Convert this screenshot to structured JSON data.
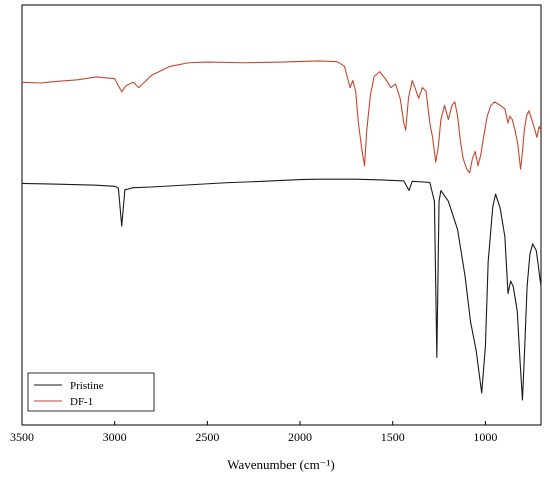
{
  "chart_data": {
    "type": "line",
    "xlabel": "Wavenumber (cm⁻¹)",
    "ylabel": "",
    "xlim": [
      3500,
      700
    ],
    "x_reversed": true,
    "y_ticks_shown": false,
    "grid": false,
    "legend_position": "bottom-left",
    "x_ticks": [
      3500,
      3000,
      2500,
      2000,
      1500,
      1000
    ],
    "series": [
      {
        "name": "Pristine",
        "color": "#1a1a1a",
        "points": [
          [
            3500,
            0.61
          ],
          [
            3300,
            0.608
          ],
          [
            3100,
            0.605
          ],
          [
            3000,
            0.602
          ],
          [
            2980,
            0.597
          ],
          [
            2962,
            0.49
          ],
          [
            2945,
            0.592
          ],
          [
            2900,
            0.598
          ],
          [
            2800,
            0.6
          ],
          [
            2600,
            0.606
          ],
          [
            2400,
            0.612
          ],
          [
            2200,
            0.616
          ],
          [
            2000,
            0.621
          ],
          [
            1900,
            0.622
          ],
          [
            1700,
            0.622
          ],
          [
            1560,
            0.62
          ],
          [
            1440,
            0.617
          ],
          [
            1412,
            0.59
          ],
          [
            1395,
            0.616
          ],
          [
            1300,
            0.613
          ],
          [
            1275,
            0.56
          ],
          [
            1262,
            0.12
          ],
          [
            1250,
            0.56
          ],
          [
            1240,
            0.59
          ],
          [
            1200,
            0.56
          ],
          [
            1150,
            0.48
          ],
          [
            1110,
            0.35
          ],
          [
            1080,
            0.22
          ],
          [
            1050,
            0.14
          ],
          [
            1020,
            0.02
          ],
          [
            1000,
            0.15
          ],
          [
            985,
            0.39
          ],
          [
            960,
            0.545
          ],
          [
            945,
            0.58
          ],
          [
            920,
            0.54
          ],
          [
            895,
            0.46
          ],
          [
            878,
            0.3
          ],
          [
            864,
            0.335
          ],
          [
            850,
            0.32
          ],
          [
            828,
            0.25
          ],
          [
            812,
            0.1
          ],
          [
            800,
            0.0
          ],
          [
            790,
            0.12
          ],
          [
            775,
            0.32
          ],
          [
            760,
            0.41
          ],
          [
            745,
            0.44
          ],
          [
            725,
            0.42
          ],
          [
            710,
            0.36
          ],
          [
            700,
            0.32
          ]
        ]
      },
      {
        "name": "DF-1",
        "color": "#c5472d",
        "points": [
          [
            3500,
            0.895
          ],
          [
            3400,
            0.893
          ],
          [
            3300,
            0.898
          ],
          [
            3200,
            0.902
          ],
          [
            3100,
            0.91
          ],
          [
            3000,
            0.905
          ],
          [
            2985,
            0.89
          ],
          [
            2962,
            0.868
          ],
          [
            2940,
            0.885
          ],
          [
            2900,
            0.895
          ],
          [
            2870,
            0.88
          ],
          [
            2840,
            0.895
          ],
          [
            2800,
            0.915
          ],
          [
            2700,
            0.94
          ],
          [
            2600,
            0.95
          ],
          [
            2500,
            0.952
          ],
          [
            2300,
            0.95
          ],
          [
            2100,
            0.952
          ],
          [
            1900,
            0.955
          ],
          [
            1800,
            0.953
          ],
          [
            1760,
            0.94
          ],
          [
            1730,
            0.88
          ],
          [
            1715,
            0.9
          ],
          [
            1700,
            0.87
          ],
          [
            1685,
            0.78
          ],
          [
            1665,
            0.7
          ],
          [
            1652,
            0.66
          ],
          [
            1640,
            0.76
          ],
          [
            1620,
            0.86
          ],
          [
            1600,
            0.912
          ],
          [
            1570,
            0.925
          ],
          [
            1540,
            0.905
          ],
          [
            1510,
            0.88
          ],
          [
            1485,
            0.89
          ],
          [
            1460,
            0.85
          ],
          [
            1440,
            0.78
          ],
          [
            1430,
            0.76
          ],
          [
            1415,
            0.85
          ],
          [
            1395,
            0.9
          ],
          [
            1380,
            0.88
          ],
          [
            1360,
            0.85
          ],
          [
            1340,
            0.88
          ],
          [
            1320,
            0.87
          ],
          [
            1300,
            0.78
          ],
          [
            1285,
            0.74
          ],
          [
            1268,
            0.67
          ],
          [
            1255,
            0.71
          ],
          [
            1240,
            0.79
          ],
          [
            1220,
            0.83
          ],
          [
            1200,
            0.79
          ],
          [
            1180,
            0.83
          ],
          [
            1165,
            0.84
          ],
          [
            1150,
            0.8
          ],
          [
            1135,
            0.73
          ],
          [
            1120,
            0.68
          ],
          [
            1100,
            0.65
          ],
          [
            1085,
            0.64
          ],
          [
            1070,
            0.68
          ],
          [
            1055,
            0.7
          ],
          [
            1040,
            0.66
          ],
          [
            1025,
            0.69
          ],
          [
            1010,
            0.74
          ],
          [
            990,
            0.8
          ],
          [
            970,
            0.83
          ],
          [
            950,
            0.84
          ],
          [
            920,
            0.83
          ],
          [
            895,
            0.82
          ],
          [
            878,
            0.78
          ],
          [
            868,
            0.8
          ],
          [
            855,
            0.79
          ],
          [
            840,
            0.76
          ],
          [
            825,
            0.72
          ],
          [
            810,
            0.65
          ],
          [
            800,
            0.7
          ],
          [
            790,
            0.76
          ],
          [
            778,
            0.8
          ],
          [
            765,
            0.815
          ],
          [
            750,
            0.79
          ],
          [
            738,
            0.77
          ],
          [
            722,
            0.74
          ],
          [
            710,
            0.77
          ],
          [
            700,
            0.76
          ]
        ]
      }
    ]
  },
  "legend": {
    "items": [
      {
        "label": "Pristine",
        "color": "#1a1a1a"
      },
      {
        "label": "DF-1",
        "color": "#c5472d"
      }
    ]
  }
}
